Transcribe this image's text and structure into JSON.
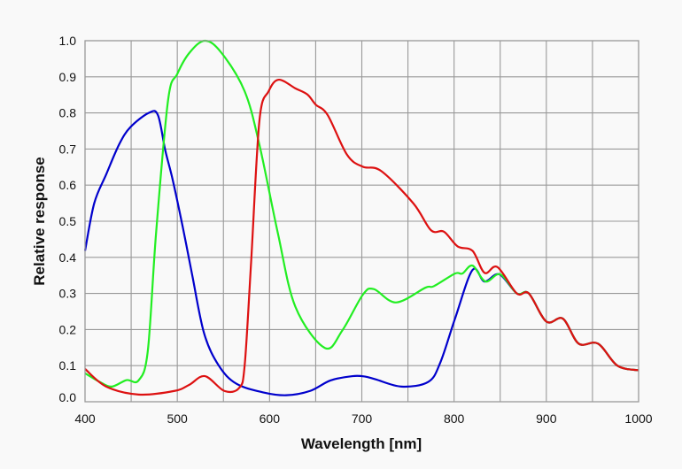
{
  "chart_data": {
    "type": "line",
    "title": "",
    "xlabel": "Wavelength [nm]",
    "ylabel": "Relative response",
    "xlim": [
      400,
      1000
    ],
    "ylim": [
      0,
      1.0
    ],
    "grid": true,
    "xticks": [
      "400",
      "500",
      "600",
      "700",
      "800",
      "900",
      "1000"
    ],
    "xtick_values": [
      400,
      500,
      600,
      700,
      800,
      900,
      1000
    ],
    "xgrid_step": 50,
    "yticks": [
      "0.0",
      "0.1",
      "0.2",
      "0.3",
      "0.4",
      "0.5",
      "0.6",
      "0.7",
      "0.8",
      "0.9",
      "1.0"
    ],
    "ytick_values": [
      0,
      0.1,
      0.2,
      0.3,
      0.4,
      0.5,
      0.6,
      0.7,
      0.8,
      0.9,
      1.0
    ],
    "series": [
      {
        "name": "blue",
        "color": "#0000cc",
        "points": [
          [
            400,
            0.418
          ],
          [
            410,
            0.55
          ],
          [
            423,
            0.63
          ],
          [
            437,
            0.713
          ],
          [
            449,
            0.76
          ],
          [
            469,
            0.8
          ],
          [
            479,
            0.794
          ],
          [
            487,
            0.696
          ],
          [
            495,
            0.615
          ],
          [
            506,
            0.483
          ],
          [
            516,
            0.353
          ],
          [
            529,
            0.19
          ],
          [
            545,
            0.1
          ],
          [
            564,
            0.05
          ],
          [
            593,
            0.026
          ],
          [
            618,
            0.018
          ],
          [
            644,
            0.03
          ],
          [
            666,
            0.059
          ],
          [
            690,
            0.071
          ],
          [
            703,
            0.07
          ],
          [
            715,
            0.062
          ],
          [
            743,
            0.042
          ],
          [
            772,
            0.055
          ],
          [
            785,
            0.108
          ],
          [
            801,
            0.23
          ],
          [
            820,
            0.365
          ],
          [
            833,
            0.333
          ],
          [
            849,
            0.353
          ],
          [
            868,
            0.3
          ],
          [
            881,
            0.3
          ],
          [
            900,
            0.222
          ],
          [
            918,
            0.23
          ],
          [
            935,
            0.161
          ],
          [
            956,
            0.161
          ],
          [
            977,
            0.1
          ],
          [
            1000,
            0.087
          ]
        ]
      },
      {
        "name": "green",
        "color": "#22ee22",
        "points": [
          [
            400,
            0.079
          ],
          [
            416,
            0.055
          ],
          [
            429,
            0.042
          ],
          [
            445,
            0.06
          ],
          [
            458,
            0.059
          ],
          [
            468,
            0.14
          ],
          [
            477,
            0.467
          ],
          [
            490,
            0.835
          ],
          [
            500,
            0.908
          ],
          [
            513,
            0.966
          ],
          [
            530,
            1.0
          ],
          [
            548,
            0.966
          ],
          [
            573,
            0.86
          ],
          [
            589,
            0.712
          ],
          [
            609,
            0.467
          ],
          [
            628,
            0.263
          ],
          [
            660,
            0.149
          ],
          [
            679,
            0.198
          ],
          [
            701,
            0.296
          ],
          [
            713,
            0.312
          ],
          [
            737,
            0.275
          ],
          [
            769,
            0.316
          ],
          [
            778,
            0.32
          ],
          [
            801,
            0.355
          ],
          [
            809,
            0.355
          ],
          [
            820,
            0.377
          ],
          [
            834,
            0.333
          ],
          [
            850,
            0.353
          ],
          [
            868,
            0.3
          ],
          [
            881,
            0.3
          ],
          [
            900,
            0.222
          ],
          [
            918,
            0.23
          ],
          [
            935,
            0.161
          ],
          [
            956,
            0.161
          ],
          [
            977,
            0.1
          ],
          [
            1000,
            0.087
          ]
        ]
      },
      {
        "name": "red",
        "color": "#dd1111",
        "points": [
          [
            400,
            0.091
          ],
          [
            423,
            0.042
          ],
          [
            458,
            0.02
          ],
          [
            497,
            0.03
          ],
          [
            513,
            0.047
          ],
          [
            530,
            0.071
          ],
          [
            551,
            0.03
          ],
          [
            567,
            0.038
          ],
          [
            573,
            0.1
          ],
          [
            580,
            0.386
          ],
          [
            589,
            0.778
          ],
          [
            599,
            0.86
          ],
          [
            610,
            0.892
          ],
          [
            628,
            0.868
          ],
          [
            641,
            0.851
          ],
          [
            650,
            0.823
          ],
          [
            663,
            0.794
          ],
          [
            684,
            0.684
          ],
          [
            701,
            0.651
          ],
          [
            721,
            0.639
          ],
          [
            756,
            0.549
          ],
          [
            775,
            0.475
          ],
          [
            789,
            0.471
          ],
          [
            804,
            0.43
          ],
          [
            820,
            0.418
          ],
          [
            833,
            0.357
          ],
          [
            847,
            0.373
          ],
          [
            868,
            0.3
          ],
          [
            881,
            0.3
          ],
          [
            900,
            0.222
          ],
          [
            918,
            0.23
          ],
          [
            935,
            0.161
          ],
          [
            956,
            0.161
          ],
          [
            977,
            0.1
          ],
          [
            1000,
            0.087
          ]
        ]
      }
    ]
  }
}
